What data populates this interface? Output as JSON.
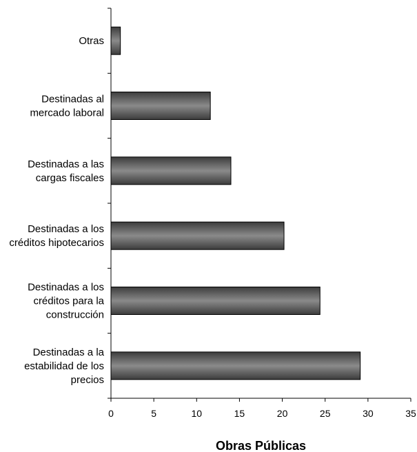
{
  "chart_data": {
    "type": "bar",
    "orientation": "horizontal",
    "categories": [
      [
        "Otras"
      ],
      [
        "Destinadas al",
        "mercado laboral"
      ],
      [
        "Destinadas a las",
        "cargas fiscales"
      ],
      [
        "Destinadas a los",
        "créditos hipotecarios"
      ],
      [
        "Destinadas a los",
        "créditos para la",
        "construcción"
      ],
      [
        "Destinadas a la",
        "estabilidad de los",
        "precios"
      ]
    ],
    "values": [
      1.1,
      11.6,
      14.0,
      20.2,
      24.4,
      29.1
    ],
    "xlabel": "Obras Públicas",
    "ylabel": "",
    "title": "",
    "xlim": [
      0,
      35
    ],
    "x_ticks": [
      0,
      5,
      10,
      15,
      20,
      25,
      30,
      35
    ],
    "grid": false,
    "legend": "none",
    "colors": {
      "bar_dark": "#3c3c3c",
      "bar_light": "#8a8a8a",
      "bar_stroke": "#000000"
    }
  }
}
